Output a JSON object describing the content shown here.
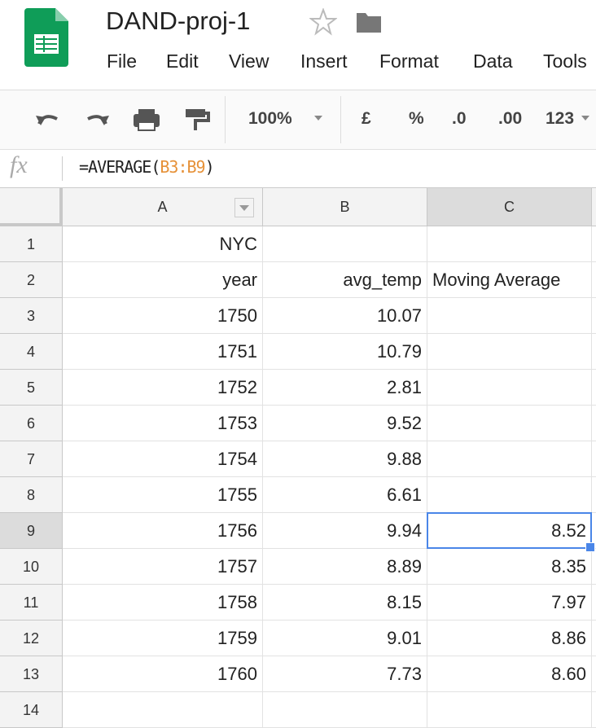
{
  "header": {
    "title": "DAND-proj-1",
    "menu": [
      "File",
      "Edit",
      "View",
      "Insert",
      "Format",
      "Data",
      "Tools"
    ]
  },
  "toolbar": {
    "zoom": "100%",
    "buttons": [
      "£",
      "%",
      ".0",
      ".00",
      "123"
    ]
  },
  "formula_bar": {
    "label": "fx",
    "formula_parts": [
      "=AVERAGE(",
      "B3:B9",
      ")"
    ]
  },
  "sheet": {
    "columns": [
      "A",
      "B",
      "C"
    ],
    "rows": [
      {
        "number": "1",
        "cells": [
          "NYC",
          null,
          null
        ]
      },
      {
        "number": "2",
        "cells": [
          "year",
          "avg_temp",
          "Moving Average"
        ]
      },
      {
        "number": "3",
        "cells": [
          "1750",
          "10.07",
          null
        ]
      },
      {
        "number": "4",
        "cells": [
          "1751",
          "10.79",
          null
        ]
      },
      {
        "number": "5",
        "cells": [
          "1752",
          "2.81",
          null
        ]
      },
      {
        "number": "6",
        "cells": [
          "1753",
          "9.52",
          null
        ]
      },
      {
        "number": "7",
        "cells": [
          "1754",
          "9.88",
          null
        ]
      },
      {
        "number": "8",
        "cells": [
          "1755",
          "6.61",
          null
        ]
      },
      {
        "number": "9",
        "cells": [
          "1756",
          "9.94",
          "8.52"
        ]
      },
      {
        "number": "10",
        "cells": [
          "1757",
          "8.89",
          "8.35"
        ]
      },
      {
        "number": "11",
        "cells": [
          "1758",
          "8.15",
          "7.97"
        ]
      },
      {
        "number": "12",
        "cells": [
          "1759",
          "9.01",
          "8.86"
        ]
      },
      {
        "number": "13",
        "cells": [
          "1760",
          "7.73",
          "8.60"
        ]
      },
      {
        "number": "14",
        "cells": [
          null,
          null,
          null
        ]
      }
    ]
  }
}
